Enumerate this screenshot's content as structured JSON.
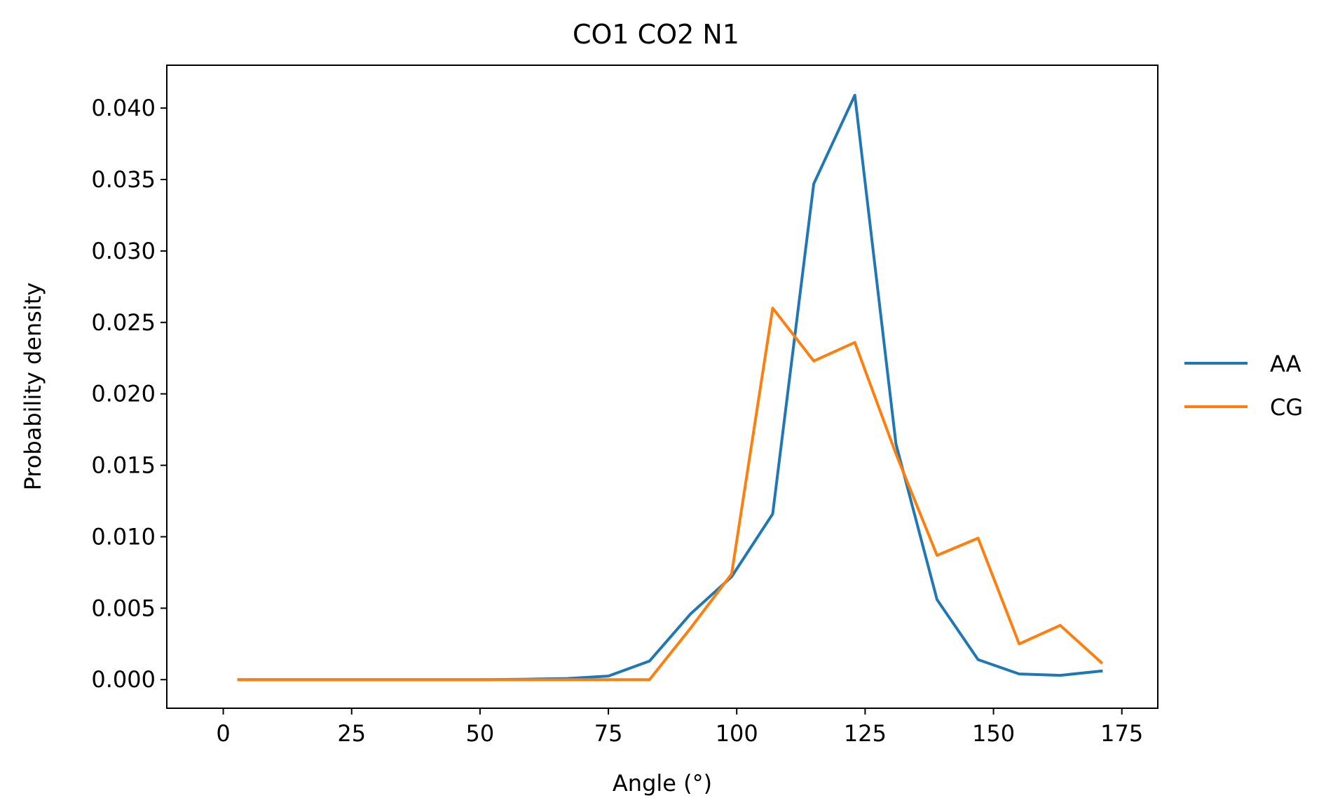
{
  "chart_data": {
    "type": "line",
    "title": "CO1 CO2 N1",
    "xlabel": "Angle (°)",
    "ylabel": "Probability density",
    "xlim": [
      -11,
      182
    ],
    "ylim": [
      -0.002,
      0.043
    ],
    "x_ticks": [
      0,
      25,
      50,
      75,
      100,
      125,
      150,
      175
    ],
    "y_ticks": [
      0.0,
      0.005,
      0.01,
      0.015,
      0.02,
      0.025,
      0.03,
      0.035,
      0.04
    ],
    "y_tick_labels": [
      "0.000",
      "0.005",
      "0.010",
      "0.015",
      "0.020",
      "0.025",
      "0.030",
      "0.035",
      "0.040"
    ],
    "grid": false,
    "legend_position": "center-right-outside",
    "x": [
      3,
      11,
      19,
      27,
      35,
      43,
      51,
      59,
      67,
      75,
      83,
      91,
      99,
      107,
      115,
      123,
      131,
      139,
      147,
      155,
      163,
      171
    ],
    "series": [
      {
        "name": "AA",
        "color": "#1f77b4",
        "values": [
          0.0,
          0.0,
          0.0,
          0.0,
          0.0,
          0.0,
          0.0,
          3e-05,
          8e-05,
          0.00025,
          0.0013,
          0.0046,
          0.0072,
          0.0116,
          0.0347,
          0.0409,
          0.0165,
          0.0056,
          0.0014,
          0.0004,
          0.0003,
          0.0006
        ]
      },
      {
        "name": "CG",
        "color": "#ff7f0e",
        "values": [
          0.0,
          0.0,
          0.0,
          0.0,
          0.0,
          0.0,
          0.0,
          0.0,
          0.0,
          0.0,
          0.0,
          0.0036,
          0.0074,
          0.026,
          0.0223,
          0.0236,
          0.0158,
          0.0087,
          0.0099,
          0.0025,
          0.0038,
          0.0012
        ]
      }
    ]
  }
}
